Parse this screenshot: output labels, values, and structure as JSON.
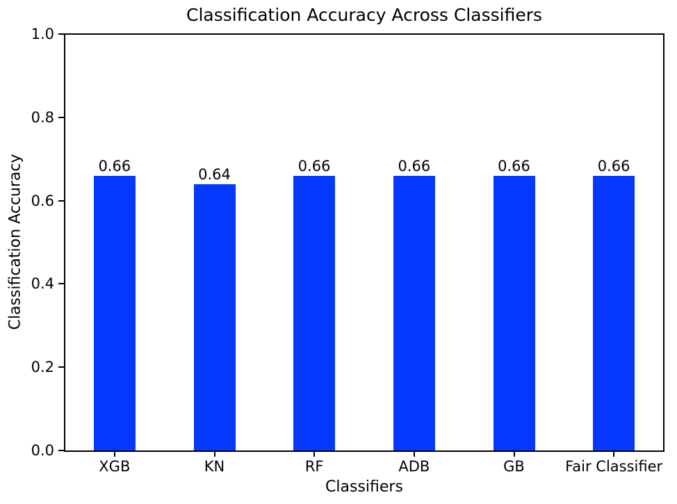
{
  "chart_data": {
    "type": "bar",
    "title": "Classification Accuracy Across Classifiers",
    "xlabel": "Classifiers",
    "ylabel": "Classification Accuracy",
    "categories": [
      "XGB",
      "KN",
      "RF",
      "ADB",
      "GB",
      "Fair Classifier"
    ],
    "values": [
      0.66,
      0.64,
      0.66,
      0.66,
      0.66,
      0.66
    ],
    "bar_labels": [
      "0.66",
      "0.64",
      "0.66",
      "0.66",
      "0.66",
      "0.66"
    ],
    "y_ticks": [
      0.0,
      0.2,
      0.4,
      0.6,
      0.8,
      1.0
    ],
    "y_tick_labels": [
      "0.0",
      "0.2",
      "0.4",
      "0.6",
      "0.8",
      "1.0"
    ],
    "ylim": [
      0,
      1
    ],
    "grid": false,
    "legend": "none",
    "bar_color": "#0438fc",
    "axis_color": "#000000",
    "text_color": "#000000",
    "background_color": "#ffffff"
  }
}
